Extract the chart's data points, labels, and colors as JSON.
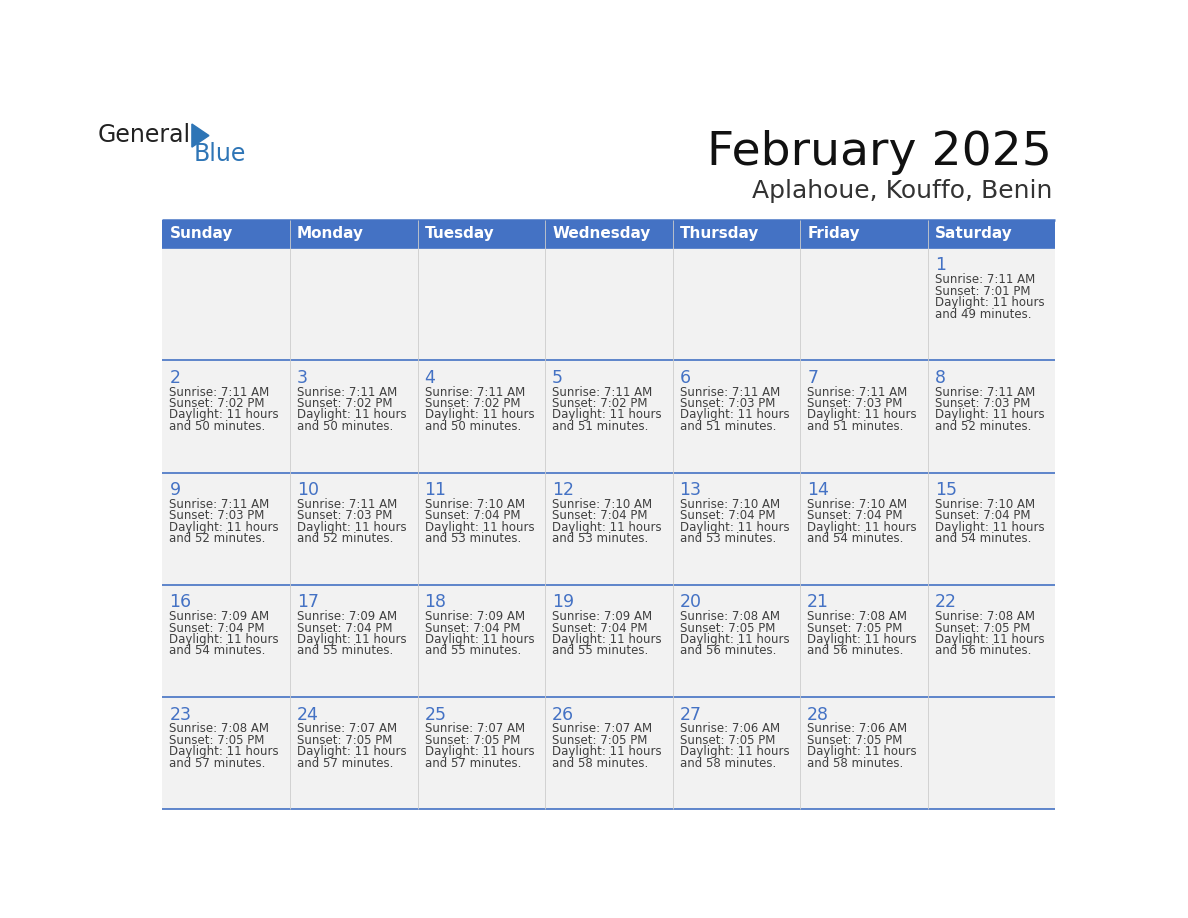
{
  "title": "February 2025",
  "subtitle": "Aplahoue, Kouffo, Benin",
  "days_of_week": [
    "Sunday",
    "Monday",
    "Tuesday",
    "Wednesday",
    "Thursday",
    "Friday",
    "Saturday"
  ],
  "header_bg": "#4472C4",
  "header_text": "#FFFFFF",
  "cell_bg": "#F2F2F2",
  "border_color": "#4472C4",
  "day_number_color": "#4472C4",
  "info_text_color": "#404040",
  "logo_general_color": "#222222",
  "logo_blue_color": "#2E75B6",
  "triangle_color": "#2E75B6",
  "calendar": [
    [
      null,
      null,
      null,
      null,
      null,
      null,
      {
        "day": 1,
        "sunrise": "7:11 AM",
        "sunset": "7:01 PM",
        "daylight_line1": "11 hours",
        "daylight_line2": "and 49 minutes."
      }
    ],
    [
      {
        "day": 2,
        "sunrise": "7:11 AM",
        "sunset": "7:02 PM",
        "daylight_line1": "11 hours",
        "daylight_line2": "and 50 minutes."
      },
      {
        "day": 3,
        "sunrise": "7:11 AM",
        "sunset": "7:02 PM",
        "daylight_line1": "11 hours",
        "daylight_line2": "and 50 minutes."
      },
      {
        "day": 4,
        "sunrise": "7:11 AM",
        "sunset": "7:02 PM",
        "daylight_line1": "11 hours",
        "daylight_line2": "and 50 minutes."
      },
      {
        "day": 5,
        "sunrise": "7:11 AM",
        "sunset": "7:02 PM",
        "daylight_line1": "11 hours",
        "daylight_line2": "and 51 minutes."
      },
      {
        "day": 6,
        "sunrise": "7:11 AM",
        "sunset": "7:03 PM",
        "daylight_line1": "11 hours",
        "daylight_line2": "and 51 minutes."
      },
      {
        "day": 7,
        "sunrise": "7:11 AM",
        "sunset": "7:03 PM",
        "daylight_line1": "11 hours",
        "daylight_line2": "and 51 minutes."
      },
      {
        "day": 8,
        "sunrise": "7:11 AM",
        "sunset": "7:03 PM",
        "daylight_line1": "11 hours",
        "daylight_line2": "and 52 minutes."
      }
    ],
    [
      {
        "day": 9,
        "sunrise": "7:11 AM",
        "sunset": "7:03 PM",
        "daylight_line1": "11 hours",
        "daylight_line2": "and 52 minutes."
      },
      {
        "day": 10,
        "sunrise": "7:11 AM",
        "sunset": "7:03 PM",
        "daylight_line1": "11 hours",
        "daylight_line2": "and 52 minutes."
      },
      {
        "day": 11,
        "sunrise": "7:10 AM",
        "sunset": "7:04 PM",
        "daylight_line1": "11 hours",
        "daylight_line2": "and 53 minutes."
      },
      {
        "day": 12,
        "sunrise": "7:10 AM",
        "sunset": "7:04 PM",
        "daylight_line1": "11 hours",
        "daylight_line2": "and 53 minutes."
      },
      {
        "day": 13,
        "sunrise": "7:10 AM",
        "sunset": "7:04 PM",
        "daylight_line1": "11 hours",
        "daylight_line2": "and 53 minutes."
      },
      {
        "day": 14,
        "sunrise": "7:10 AM",
        "sunset": "7:04 PM",
        "daylight_line1": "11 hours",
        "daylight_line2": "and 54 minutes."
      },
      {
        "day": 15,
        "sunrise": "7:10 AM",
        "sunset": "7:04 PM",
        "daylight_line1": "11 hours",
        "daylight_line2": "and 54 minutes."
      }
    ],
    [
      {
        "day": 16,
        "sunrise": "7:09 AM",
        "sunset": "7:04 PM",
        "daylight_line1": "11 hours",
        "daylight_line2": "and 54 minutes."
      },
      {
        "day": 17,
        "sunrise": "7:09 AM",
        "sunset": "7:04 PM",
        "daylight_line1": "11 hours",
        "daylight_line2": "and 55 minutes."
      },
      {
        "day": 18,
        "sunrise": "7:09 AM",
        "sunset": "7:04 PM",
        "daylight_line1": "11 hours",
        "daylight_line2": "and 55 minutes."
      },
      {
        "day": 19,
        "sunrise": "7:09 AM",
        "sunset": "7:04 PM",
        "daylight_line1": "11 hours",
        "daylight_line2": "and 55 minutes."
      },
      {
        "day": 20,
        "sunrise": "7:08 AM",
        "sunset": "7:05 PM",
        "daylight_line1": "11 hours",
        "daylight_line2": "and 56 minutes."
      },
      {
        "day": 21,
        "sunrise": "7:08 AM",
        "sunset": "7:05 PM",
        "daylight_line1": "11 hours",
        "daylight_line2": "and 56 minutes."
      },
      {
        "day": 22,
        "sunrise": "7:08 AM",
        "sunset": "7:05 PM",
        "daylight_line1": "11 hours",
        "daylight_line2": "and 56 minutes."
      }
    ],
    [
      {
        "day": 23,
        "sunrise": "7:08 AM",
        "sunset": "7:05 PM",
        "daylight_line1": "11 hours",
        "daylight_line2": "and 57 minutes."
      },
      {
        "day": 24,
        "sunrise": "7:07 AM",
        "sunset": "7:05 PM",
        "daylight_line1": "11 hours",
        "daylight_line2": "and 57 minutes."
      },
      {
        "day": 25,
        "sunrise": "7:07 AM",
        "sunset": "7:05 PM",
        "daylight_line1": "11 hours",
        "daylight_line2": "and 57 minutes."
      },
      {
        "day": 26,
        "sunrise": "7:07 AM",
        "sunset": "7:05 PM",
        "daylight_line1": "11 hours",
        "daylight_line2": "and 58 minutes."
      },
      {
        "day": 27,
        "sunrise": "7:06 AM",
        "sunset": "7:05 PM",
        "daylight_line1": "11 hours",
        "daylight_line2": "and 58 minutes."
      },
      {
        "day": 28,
        "sunrise": "7:06 AM",
        "sunset": "7:05 PM",
        "daylight_line1": "11 hours",
        "daylight_line2": "and 58 minutes."
      },
      null
    ]
  ]
}
